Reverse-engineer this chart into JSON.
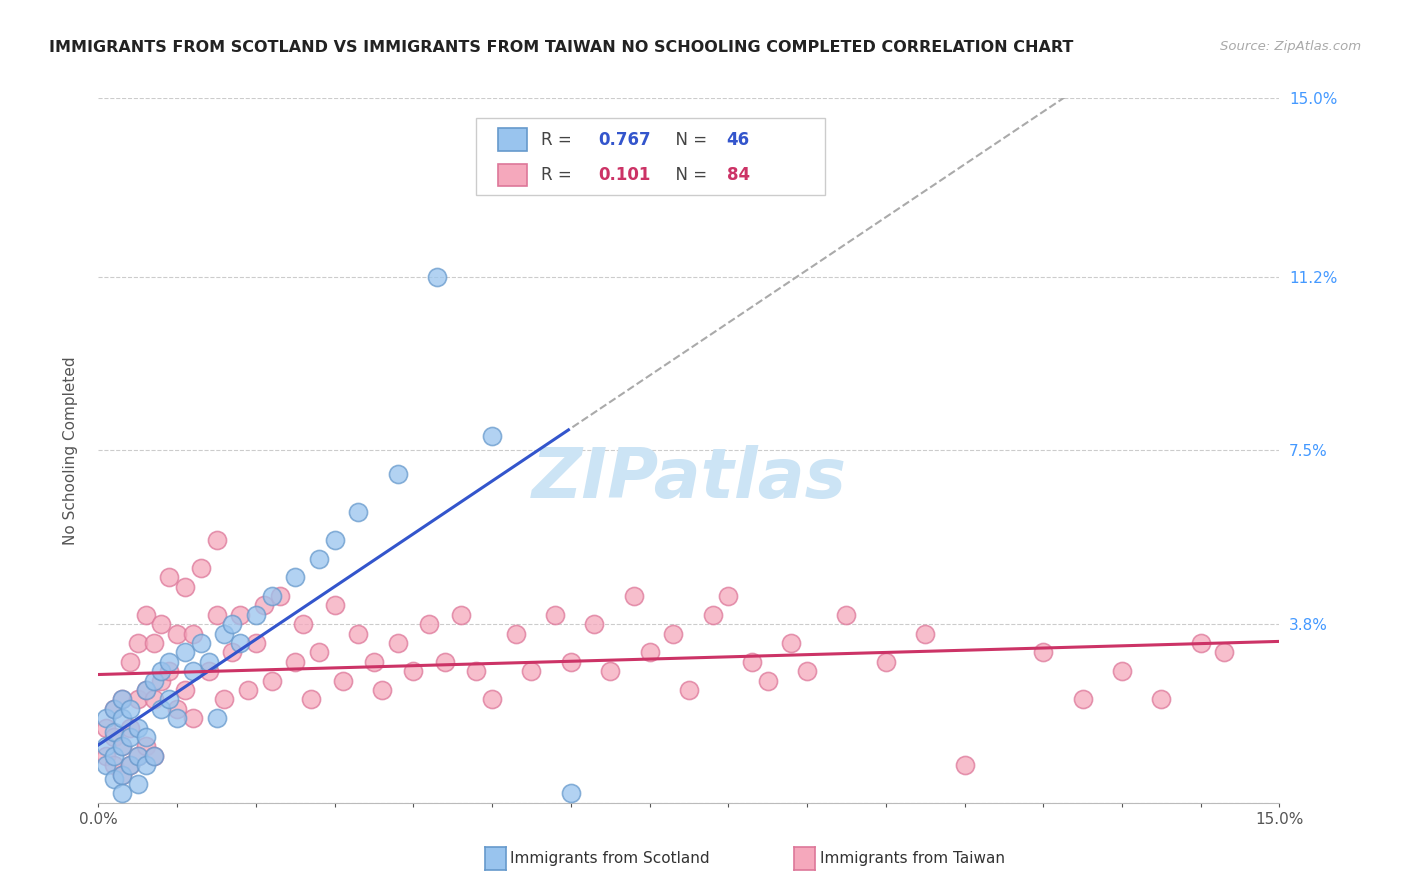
{
  "title": "IMMIGRANTS FROM SCOTLAND VS IMMIGRANTS FROM TAIWAN NO SCHOOLING COMPLETED CORRELATION CHART",
  "source_text": "Source: ZipAtlas.com",
  "ylabel": "No Schooling Completed",
  "xmin": 0.0,
  "xmax": 0.15,
  "ymin": 0.0,
  "ymax": 0.15,
  "yticks": [
    0.0,
    0.038,
    0.075,
    0.112,
    0.15
  ],
  "ytick_labels": [
    "",
    "3.8%",
    "7.5%",
    "11.2%",
    "15.0%"
  ],
  "right_ytick_color": "#4499ff",
  "grid_color": "#cccccc",
  "background_color": "#ffffff",
  "watermark": "ZIPatlas",
  "watermark_color": "#cce4f5",
  "scotland_fill": "#99c4ee",
  "scotland_edge": "#6699cc",
  "taiwan_fill": "#f5a8bc",
  "taiwan_edge": "#dd7799",
  "blue_line_color": "#3355cc",
  "pink_line_color": "#cc3366",
  "dashed_line_color": "#aaaaaa",
  "r_scotland": 0.767,
  "n_scotland": 46,
  "r_taiwan": 0.101,
  "n_taiwan": 84,
  "scotland_x": [
    0.001,
    0.001,
    0.001,
    0.002,
    0.002,
    0.002,
    0.002,
    0.003,
    0.003,
    0.003,
    0.003,
    0.003,
    0.004,
    0.004,
    0.004,
    0.005,
    0.005,
    0.005,
    0.006,
    0.006,
    0.006,
    0.007,
    0.007,
    0.008,
    0.008,
    0.009,
    0.009,
    0.01,
    0.011,
    0.012,
    0.013,
    0.014,
    0.015,
    0.016,
    0.017,
    0.018,
    0.02,
    0.022,
    0.025,
    0.028,
    0.03,
    0.033,
    0.038,
    0.043,
    0.05,
    0.06
  ],
  "scotland_y": [
    0.008,
    0.012,
    0.018,
    0.005,
    0.01,
    0.015,
    0.02,
    0.006,
    0.012,
    0.018,
    0.022,
    0.002,
    0.008,
    0.014,
    0.02,
    0.004,
    0.01,
    0.016,
    0.008,
    0.014,
    0.024,
    0.01,
    0.026,
    0.02,
    0.028,
    0.022,
    0.03,
    0.018,
    0.032,
    0.028,
    0.034,
    0.03,
    0.018,
    0.036,
    0.038,
    0.034,
    0.04,
    0.044,
    0.048,
    0.052,
    0.056,
    0.062,
    0.07,
    0.112,
    0.078,
    0.002
  ],
  "taiwan_x": [
    0.001,
    0.001,
    0.002,
    0.002,
    0.002,
    0.003,
    0.003,
    0.003,
    0.004,
    0.004,
    0.004,
    0.005,
    0.005,
    0.005,
    0.006,
    0.006,
    0.006,
    0.007,
    0.007,
    0.007,
    0.008,
    0.008,
    0.009,
    0.009,
    0.01,
    0.01,
    0.011,
    0.011,
    0.012,
    0.012,
    0.013,
    0.014,
    0.015,
    0.015,
    0.016,
    0.017,
    0.018,
    0.019,
    0.02,
    0.021,
    0.022,
    0.023,
    0.025,
    0.026,
    0.027,
    0.028,
    0.03,
    0.031,
    0.033,
    0.035,
    0.036,
    0.038,
    0.04,
    0.042,
    0.044,
    0.046,
    0.048,
    0.05,
    0.053,
    0.055,
    0.058,
    0.06,
    0.063,
    0.065,
    0.068,
    0.07,
    0.073,
    0.075,
    0.078,
    0.08,
    0.083,
    0.085,
    0.088,
    0.09,
    0.095,
    0.1,
    0.105,
    0.11,
    0.12,
    0.125,
    0.13,
    0.135,
    0.14,
    0.143
  ],
  "taiwan_y": [
    0.01,
    0.016,
    0.008,
    0.014,
    0.02,
    0.006,
    0.012,
    0.022,
    0.008,
    0.016,
    0.03,
    0.01,
    0.022,
    0.034,
    0.012,
    0.024,
    0.04,
    0.01,
    0.022,
    0.034,
    0.026,
    0.038,
    0.028,
    0.048,
    0.02,
    0.036,
    0.024,
    0.046,
    0.018,
    0.036,
    0.05,
    0.028,
    0.04,
    0.056,
    0.022,
    0.032,
    0.04,
    0.024,
    0.034,
    0.042,
    0.026,
    0.044,
    0.03,
    0.038,
    0.022,
    0.032,
    0.042,
    0.026,
    0.036,
    0.03,
    0.024,
    0.034,
    0.028,
    0.038,
    0.03,
    0.04,
    0.028,
    0.022,
    0.036,
    0.028,
    0.04,
    0.03,
    0.038,
    0.028,
    0.044,
    0.032,
    0.036,
    0.024,
    0.04,
    0.044,
    0.03,
    0.026,
    0.034,
    0.028,
    0.04,
    0.03,
    0.036,
    0.008,
    0.032,
    0.022,
    0.028,
    0.022,
    0.034,
    0.032
  ]
}
